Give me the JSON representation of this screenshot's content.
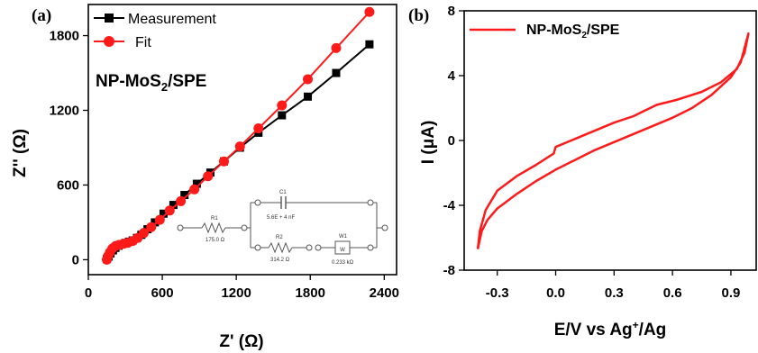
{
  "chart_data": [
    {
      "panel_label": "(a)",
      "type": "line",
      "annotation": "NP-MoS2/SPE",
      "xlabel": "Z' (Ω)",
      "ylabel": "Z'' (Ω)",
      "xlim": [
        0,
        2500
      ],
      "ylim": [
        -120,
        2050
      ],
      "xticks": [
        "0",
        "600",
        "1200",
        "1800",
        "2400"
      ],
      "yticks": [
        "0",
        "600",
        "1200",
        "1800"
      ],
      "legend_position": "top-left",
      "series": [
        {
          "name": "Measurement",
          "color": "#000000",
          "marker": "square",
          "points": [
            [
              150,
              5
            ],
            [
              165,
              25
            ],
            [
              180,
              50
            ],
            [
              200,
              75
            ],
            [
              220,
              95
            ],
            [
              245,
              112
            ],
            [
              270,
              125
            ],
            [
              300,
              135
            ],
            [
              330,
              145
            ],
            [
              360,
              155
            ],
            [
              395,
              175
            ],
            [
              430,
              200
            ],
            [
              480,
              245
            ],
            [
              540,
              300
            ],
            [
              610,
              370
            ],
            [
              690,
              440
            ],
            [
              780,
              520
            ],
            [
              880,
              610
            ],
            [
              990,
              700
            ],
            [
              1100,
              790
            ],
            [
              1230,
              900
            ],
            [
              1380,
              1020
            ],
            [
              1570,
              1160
            ],
            [
              1780,
              1310
            ],
            [
              2010,
              1500
            ],
            [
              2280,
              1730
            ]
          ]
        },
        {
          "name": "Fit",
          "color": "#ff1a1a",
          "marker": "circle",
          "points": [
            [
              150,
              0
            ],
            [
              160,
              30
            ],
            [
              175,
              60
            ],
            [
              195,
              90
            ],
            [
              220,
              110
            ],
            [
              250,
              120
            ],
            [
              285,
              128
            ],
            [
              320,
              135
            ],
            [
              360,
              150
            ],
            [
              400,
              175
            ],
            [
              450,
              215
            ],
            [
              510,
              262
            ],
            [
              580,
              320
            ],
            [
              660,
              395
            ],
            [
              750,
              470
            ],
            [
              860,
              565
            ],
            [
              970,
              670
            ],
            [
              1100,
              790
            ],
            [
              1230,
              910
            ],
            [
              1380,
              1055
            ],
            [
              1570,
              1240
            ],
            [
              1780,
              1450
            ],
            [
              2010,
              1700
            ],
            [
              2280,
              1990
            ]
          ]
        }
      ],
      "circuit": {
        "r1_label": "R1",
        "r1_value": "175.0 Ω",
        "c1_label": "C1",
        "c1_value": "5.6E + 4 nF",
        "r2_label": "R2",
        "r2_value": "314.2 Ω",
        "w1_label": "W1",
        "w1_symbol": "W",
        "w1_value": "0.233 kΩ"
      }
    },
    {
      "panel_label": "(b)",
      "type": "line",
      "xlabel": "E/V vs Ag+/Ag",
      "ylabel": "I (μA)",
      "xlim": [
        -0.47,
        1.03
      ],
      "ylim": [
        -8,
        8
      ],
      "xticks": [
        "-0.3",
        "0.0",
        "0.3",
        "0.6",
        "0.9"
      ],
      "yticks": [
        "-8",
        "-4",
        "0",
        "4",
        "8"
      ],
      "legend_position": "top-left",
      "series": [
        {
          "name": "NP-MoS2/SPE",
          "color": "#ff1a1a",
          "points": [
            [
              -0.4,
              -6.7
            ],
            [
              -0.38,
              -5.6
            ],
            [
              -0.35,
              -4.9
            ],
            [
              -0.3,
              -4.2
            ],
            [
              -0.2,
              -3.3
            ],
            [
              -0.1,
              -2.5
            ],
            [
              0.0,
              -1.8
            ],
            [
              0.1,
              -1.2
            ],
            [
              0.2,
              -0.6
            ],
            [
              0.3,
              -0.1
            ],
            [
              0.4,
              0.4
            ],
            [
              0.5,
              0.9
            ],
            [
              0.6,
              1.4
            ],
            [
              0.7,
              2.0
            ],
            [
              0.8,
              2.8
            ],
            [
              0.9,
              3.9
            ],
            [
              0.95,
              4.8
            ],
            [
              0.99,
              6.6
            ],
            [
              0.97,
              5.4
            ],
            [
              0.93,
              4.4
            ],
            [
              0.85,
              3.6
            ],
            [
              0.75,
              3.0
            ],
            [
              0.62,
              2.5
            ],
            [
              0.52,
              2.2
            ],
            [
              0.45,
              1.8
            ],
            [
              0.4,
              1.5
            ],
            [
              0.3,
              1.1
            ],
            [
              0.2,
              0.6
            ],
            [
              0.1,
              0.1
            ],
            [
              0.0,
              -0.4
            ],
            [
              -0.01,
              -0.8
            ],
            [
              -0.1,
              -1.5
            ],
            [
              -0.2,
              -2.2
            ],
            [
              -0.3,
              -3.1
            ],
            [
              -0.36,
              -4.3
            ],
            [
              -0.39,
              -5.6
            ],
            [
              -0.4,
              -6.7
            ]
          ]
        }
      ]
    }
  ]
}
